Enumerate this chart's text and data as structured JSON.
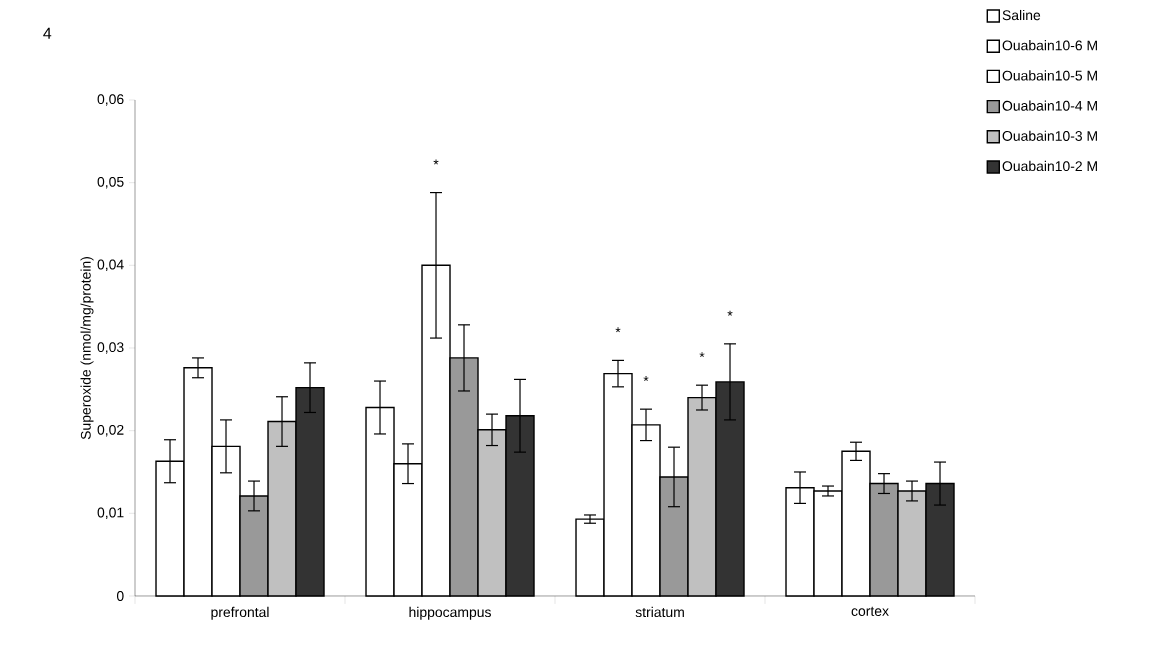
{
  "chart_data": {
    "type": "bar",
    "categories": [
      "prefrontal",
      "hippocampus",
      "striatum",
      "cortex"
    ],
    "ylabel": "Superoxide (nmol/mg/protein)",
    "ylim": [
      0,
      0.06
    ],
    "yticks": [
      0,
      {
        "value": 0.01,
        "label": "0,01"
      },
      {
        "value": 0.02,
        "label": "0,02"
      },
      {
        "value": 0.03,
        "label": "0,03"
      },
      {
        "value": 0.04,
        "label": "0,04"
      },
      {
        "value": 0.05,
        "label": "0,05"
      },
      {
        "value": 0.06,
        "label": "0,06"
      }
    ],
    "series": [
      {
        "name": "Saline",
        "color": "#ffffff",
        "values": [
          0.0163,
          0.0228,
          0.0093,
          0.0131
        ],
        "errors": [
          0.0026,
          0.0032,
          0.0005,
          0.0019
        ]
      },
      {
        "name": "Ouabain10-6 M",
        "color": "#ffffff",
        "values": [
          0.0276,
          0.016,
          0.0269,
          0.0127
        ],
        "errors": [
          0.0012,
          0.0024,
          0.0016,
          0.0006
        ]
      },
      {
        "name": "Ouabain10-5 M",
        "color": "#ffffff",
        "values": [
          0.0181,
          0.04,
          0.0207,
          0.0175
        ],
        "errors": [
          0.0032,
          0.0088,
          0.0019,
          0.0011
        ]
      },
      {
        "name": "Ouabain10-4 M",
        "color": "#999999",
        "values": [
          0.0121,
          0.0288,
          0.0144,
          0.0136
        ],
        "errors": [
          0.0018,
          0.004,
          0.0036,
          0.0012
        ]
      },
      {
        "name": "Ouabain10-3 M",
        "color": "#c0c0c0",
        "values": [
          0.0211,
          0.0201,
          0.024,
          0.0127
        ],
        "errors": [
          0.003,
          0.0019,
          0.0015,
          0.0012
        ]
      },
      {
        "name": "Ouabain10-2 M",
        "color": "#333333",
        "values": [
          0.0252,
          0.0218,
          0.0259,
          0.0136
        ],
        "errors": [
          0.003,
          0.0044,
          0.0046,
          0.0026
        ]
      }
    ],
    "legend": "right",
    "annotations": [
      "4",
      "*",
      "*",
      "*",
      "*",
      "*"
    ]
  }
}
